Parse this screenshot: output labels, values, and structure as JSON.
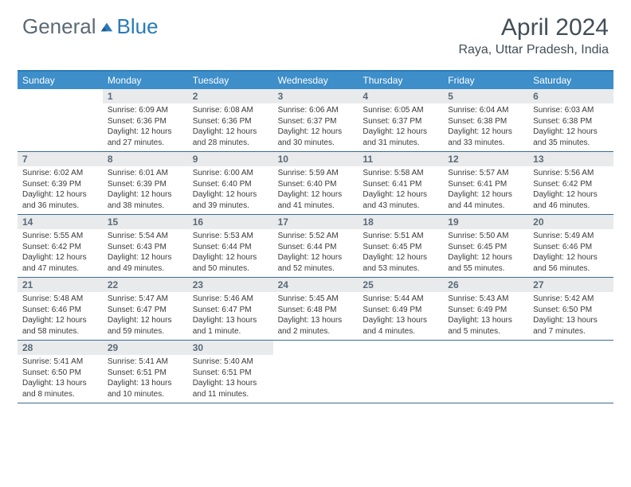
{
  "logo": {
    "text1": "General",
    "text2": "Blue",
    "shape_color": "#2a7ab8"
  },
  "title": "April 2024",
  "location": "Raya, Uttar Pradesh, India",
  "header_bg": "#3d8ec9",
  "daynum_bg": "#e9eaec",
  "border_color": "#3d6b8f",
  "day_names": [
    "Sunday",
    "Monday",
    "Tuesday",
    "Wednesday",
    "Thursday",
    "Friday",
    "Saturday"
  ],
  "weeks": [
    [
      {
        "n": "",
        "sr": "",
        "ss": "",
        "dl": ""
      },
      {
        "n": "1",
        "sr": "6:09 AM",
        "ss": "6:36 PM",
        "dl": "12 hours and 27 minutes."
      },
      {
        "n": "2",
        "sr": "6:08 AM",
        "ss": "6:36 PM",
        "dl": "12 hours and 28 minutes."
      },
      {
        "n": "3",
        "sr": "6:06 AM",
        "ss": "6:37 PM",
        "dl": "12 hours and 30 minutes."
      },
      {
        "n": "4",
        "sr": "6:05 AM",
        "ss": "6:37 PM",
        "dl": "12 hours and 31 minutes."
      },
      {
        "n": "5",
        "sr": "6:04 AM",
        "ss": "6:38 PM",
        "dl": "12 hours and 33 minutes."
      },
      {
        "n": "6",
        "sr": "6:03 AM",
        "ss": "6:38 PM",
        "dl": "12 hours and 35 minutes."
      }
    ],
    [
      {
        "n": "7",
        "sr": "6:02 AM",
        "ss": "6:39 PM",
        "dl": "12 hours and 36 minutes."
      },
      {
        "n": "8",
        "sr": "6:01 AM",
        "ss": "6:39 PM",
        "dl": "12 hours and 38 minutes."
      },
      {
        "n": "9",
        "sr": "6:00 AM",
        "ss": "6:40 PM",
        "dl": "12 hours and 39 minutes."
      },
      {
        "n": "10",
        "sr": "5:59 AM",
        "ss": "6:40 PM",
        "dl": "12 hours and 41 minutes."
      },
      {
        "n": "11",
        "sr": "5:58 AM",
        "ss": "6:41 PM",
        "dl": "12 hours and 43 minutes."
      },
      {
        "n": "12",
        "sr": "5:57 AM",
        "ss": "6:41 PM",
        "dl": "12 hours and 44 minutes."
      },
      {
        "n": "13",
        "sr": "5:56 AM",
        "ss": "6:42 PM",
        "dl": "12 hours and 46 minutes."
      }
    ],
    [
      {
        "n": "14",
        "sr": "5:55 AM",
        "ss": "6:42 PM",
        "dl": "12 hours and 47 minutes."
      },
      {
        "n": "15",
        "sr": "5:54 AM",
        "ss": "6:43 PM",
        "dl": "12 hours and 49 minutes."
      },
      {
        "n": "16",
        "sr": "5:53 AM",
        "ss": "6:44 PM",
        "dl": "12 hours and 50 minutes."
      },
      {
        "n": "17",
        "sr": "5:52 AM",
        "ss": "6:44 PM",
        "dl": "12 hours and 52 minutes."
      },
      {
        "n": "18",
        "sr": "5:51 AM",
        "ss": "6:45 PM",
        "dl": "12 hours and 53 minutes."
      },
      {
        "n": "19",
        "sr": "5:50 AM",
        "ss": "6:45 PM",
        "dl": "12 hours and 55 minutes."
      },
      {
        "n": "20",
        "sr": "5:49 AM",
        "ss": "6:46 PM",
        "dl": "12 hours and 56 minutes."
      }
    ],
    [
      {
        "n": "21",
        "sr": "5:48 AM",
        "ss": "6:46 PM",
        "dl": "12 hours and 58 minutes."
      },
      {
        "n": "22",
        "sr": "5:47 AM",
        "ss": "6:47 PM",
        "dl": "12 hours and 59 minutes."
      },
      {
        "n": "23",
        "sr": "5:46 AM",
        "ss": "6:47 PM",
        "dl": "13 hours and 1 minute."
      },
      {
        "n": "24",
        "sr": "5:45 AM",
        "ss": "6:48 PM",
        "dl": "13 hours and 2 minutes."
      },
      {
        "n": "25",
        "sr": "5:44 AM",
        "ss": "6:49 PM",
        "dl": "13 hours and 4 minutes."
      },
      {
        "n": "26",
        "sr": "5:43 AM",
        "ss": "6:49 PM",
        "dl": "13 hours and 5 minutes."
      },
      {
        "n": "27",
        "sr": "5:42 AM",
        "ss": "6:50 PM",
        "dl": "13 hours and 7 minutes."
      }
    ],
    [
      {
        "n": "28",
        "sr": "5:41 AM",
        "ss": "6:50 PM",
        "dl": "13 hours and 8 minutes."
      },
      {
        "n": "29",
        "sr": "5:41 AM",
        "ss": "6:51 PM",
        "dl": "13 hours and 10 minutes."
      },
      {
        "n": "30",
        "sr": "5:40 AM",
        "ss": "6:51 PM",
        "dl": "13 hours and 11 minutes."
      },
      {
        "n": "",
        "sr": "",
        "ss": "",
        "dl": ""
      },
      {
        "n": "",
        "sr": "",
        "ss": "",
        "dl": ""
      },
      {
        "n": "",
        "sr": "",
        "ss": "",
        "dl": ""
      },
      {
        "n": "",
        "sr": "",
        "ss": "",
        "dl": ""
      }
    ]
  ],
  "labels": {
    "sunrise": "Sunrise:",
    "sunset": "Sunset:",
    "daylight": "Daylight:"
  }
}
